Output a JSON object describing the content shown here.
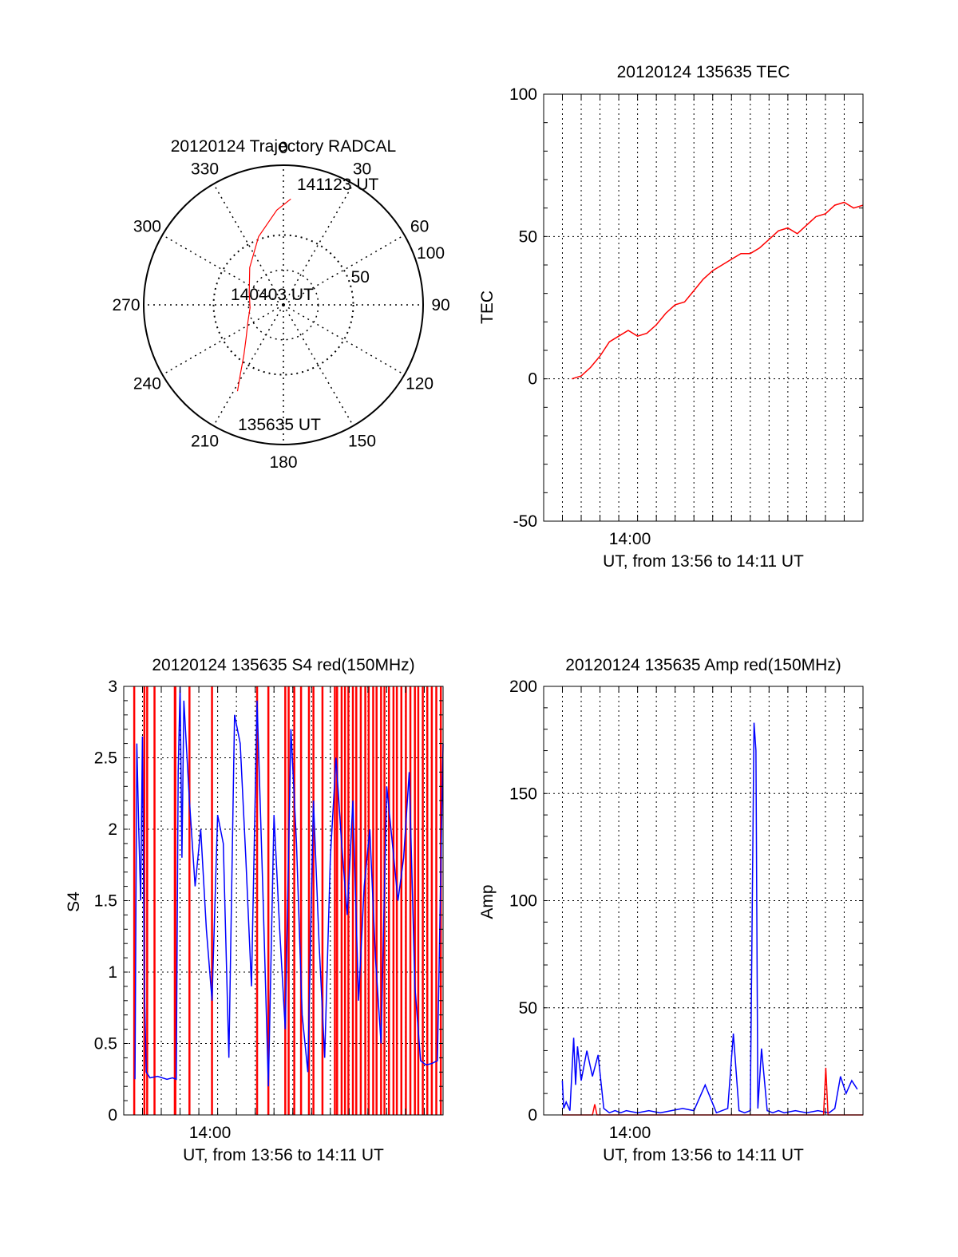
{
  "colors": {
    "primary": "#ff0000",
    "secondary": "#0000ff",
    "axis": "#000000",
    "grid": "#000000"
  },
  "chart_data": [
    {
      "type": "polar",
      "title": "20120124 Trajectory RADCAL",
      "angle_labels": [
        "0",
        "30",
        "60",
        "90",
        "120",
        "150",
        "180",
        "210",
        "240",
        "270",
        "300",
        "330"
      ],
      "radial_labels": [
        "50",
        "100"
      ],
      "radial_ticks": [
        50,
        100
      ],
      "rlim": [
        0,
        100
      ],
      "series": [
        {
          "color": "#ff0000",
          "points": [
            {
              "az": 208,
              "r": 70
            },
            {
              "az": 212,
              "r": 58
            },
            {
              "az": 218,
              "r": 46
            },
            {
              "az": 228,
              "r": 36
            },
            {
              "az": 245,
              "r": 28
            },
            {
              "az": 265,
              "r": 24
            },
            {
              "az": 290,
              "r": 26
            },
            {
              "az": 318,
              "r": 36
            },
            {
              "az": 340,
              "r": 52
            },
            {
              "az": 356,
              "r": 68
            },
            {
              "az": 4,
              "r": 76
            }
          ]
        }
      ],
      "annotations": [
        "141123 UT",
        "140403 UT",
        "135635 UT"
      ],
      "grid": true
    },
    {
      "type": "line",
      "title": "20120124 135635 TEC",
      "xlabel": "UT, from 13:56 to 14:11 UT",
      "ylabel": "TEC",
      "ylim": [
        -50,
        100
      ],
      "xlim": [
        13.9167,
        14.2
      ],
      "yticks": [
        -50,
        0,
        50,
        100
      ],
      "xtick_label": "14:00",
      "series": [
        {
          "color": "#ff0000",
          "x": [
            13.9417,
            13.95,
            13.9583,
            13.9667,
            13.975,
            13.9833,
            13.9917,
            14.0,
            14.0083,
            14.0167,
            14.025,
            14.0333,
            14.0417,
            14.05,
            14.0583,
            14.0667,
            14.075,
            14.0833,
            14.0917,
            14.1,
            14.1083,
            14.1167,
            14.125,
            14.1333,
            14.1417,
            14.15,
            14.1583,
            14.1667,
            14.175,
            14.1833,
            14.1917,
            14.2
          ],
          "y": [
            0,
            1,
            4,
            8,
            13,
            15,
            17,
            15,
            16,
            19,
            23,
            26,
            27,
            31,
            35,
            38,
            40,
            42,
            44,
            44,
            46,
            49,
            52,
            53,
            51,
            54,
            57,
            58,
            61,
            62,
            60,
            61
          ]
        }
      ],
      "grid": true
    },
    {
      "type": "line",
      "title": "20120124 135635 S4 red(150MHz)",
      "xlabel": "UT, from 13:56 to 14:11 UT",
      "ylabel": "S4",
      "ylim": [
        0,
        3
      ],
      "xlim": [
        13.9167,
        14.2
      ],
      "yticks": [
        0,
        0.5,
        1,
        1.5,
        2,
        2.5,
        3
      ],
      "xtick_label": "14:00",
      "series": [
        {
          "color": "#0000ff",
          "x": [
            13.9267,
            13.9283,
            13.93,
            13.9317,
            13.9333,
            13.935,
            13.9367,
            13.94,
            13.9467,
            13.955,
            13.96,
            13.9633,
            13.965,
            13.9667,
            13.9683,
            13.97,
            13.975,
            13.98,
            13.985,
            13.99,
            13.995,
            14.0,
            14.005,
            14.01,
            14.015,
            14.02,
            14.025,
            14.03,
            14.035,
            14.04,
            14.045,
            14.05,
            14.055,
            14.06,
            14.065,
            14.07,
            14.075,
            14.08,
            14.085,
            14.09,
            14.095,
            14.1,
            14.105,
            14.11,
            14.115,
            14.12,
            14.125,
            14.13,
            14.135,
            14.14,
            14.145,
            14.15,
            14.155,
            14.16,
            14.165,
            14.17,
            14.175,
            14.18,
            14.185,
            14.19,
            14.195,
            14.2
          ],
          "y": [
            0.25,
            2.6,
            2.0,
            1.5,
            2.65,
            0.9,
            0.3,
            0.26,
            0.27,
            0.25,
            0.26,
            0.25,
            2.4,
            3.0,
            1.8,
            2.9,
            2.2,
            1.6,
            2.0,
            1.3,
            0.8,
            2.1,
            1.9,
            0.4,
            2.8,
            2.6,
            1.8,
            0.9,
            2.9,
            1.6,
            0.2,
            2.1,
            1.3,
            0.6,
            2.7,
            1.9,
            0.7,
            0.3,
            2.2,
            1.2,
            0.4,
            1.8,
            2.5,
            1.9,
            1.4,
            2.2,
            0.8,
            1.6,
            2.0,
            1.1,
            0.5,
            2.3,
            1.9,
            1.5,
            1.8,
            2.4,
            0.9,
            0.38,
            0.35,
            0.36,
            0.38,
            2.6
          ]
        },
        {
          "color": "#ff0000",
          "spike_x": [
            13.926,
            13.935,
            13.9375,
            13.944,
            13.962,
            13.9625,
            13.975,
            13.995,
            14.035,
            14.045,
            14.06,
            14.063,
            14.068,
            14.074,
            14.081,
            14.085,
            14.093,
            14.104,
            14.106,
            14.11,
            14.113,
            14.116,
            14.12,
            14.123,
            14.127,
            14.131,
            14.134,
            14.138,
            14.141,
            14.145,
            14.148,
            14.152,
            14.156,
            14.159,
            14.163,
            14.167,
            14.171,
            14.175,
            14.178,
            14.182,
            14.186,
            14.19,
            14.194,
            14.198
          ]
        }
      ],
      "grid": true
    },
    {
      "type": "line",
      "title": "20120124 135635 Amp red(150MHz)",
      "xlabel": "UT, from 13:56 to 14:11 UT",
      "ylabel": "Amp",
      "ylim": [
        0,
        200
      ],
      "xlim": [
        13.9167,
        14.2
      ],
      "yticks": [
        0,
        50,
        100,
        150,
        200
      ],
      "xtick_label": "14:00",
      "series": [
        {
          "color": "#0000ff",
          "x": [
            13.9333,
            13.9345,
            13.9367,
            13.94,
            13.9433,
            13.945,
            13.9467,
            13.95,
            13.955,
            13.96,
            13.965,
            13.97,
            13.975,
            13.98,
            13.985,
            13.99,
            14.0,
            14.01,
            14.02,
            14.03,
            14.04,
            14.05,
            14.06,
            14.07,
            14.075,
            14.08,
            14.085,
            14.09,
            14.095,
            14.1,
            14.1033,
            14.105,
            14.1067,
            14.11,
            14.115,
            14.12,
            14.125,
            14.13,
            14.14,
            14.15,
            14.16,
            14.17,
            14.175,
            14.18,
            14.185,
            14.19,
            14.195
          ],
          "y": [
            16,
            3,
            6,
            2,
            36,
            14,
            32,
            16,
            30,
            18,
            28,
            3,
            1,
            2,
            1,
            2,
            1,
            2,
            1,
            2,
            3,
            2,
            14,
            1,
            2,
            3,
            38,
            2,
            1,
            2,
            183,
            170,
            3,
            31,
            2,
            1,
            2,
            1,
            2,
            1,
            2,
            1,
            3,
            18,
            10,
            16,
            12
          ]
        },
        {
          "color": "#ff0000",
          "x": [
            13.9333,
            13.96,
            13.962,
            13.964,
            13.97,
            14.03,
            14.1,
            14.165,
            14.167,
            14.169,
            14.19,
            14.2
          ],
          "y": [
            0,
            0,
            5,
            0,
            0,
            0,
            0,
            0,
            22,
            0,
            0,
            0
          ]
        }
      ],
      "grid": true
    }
  ]
}
